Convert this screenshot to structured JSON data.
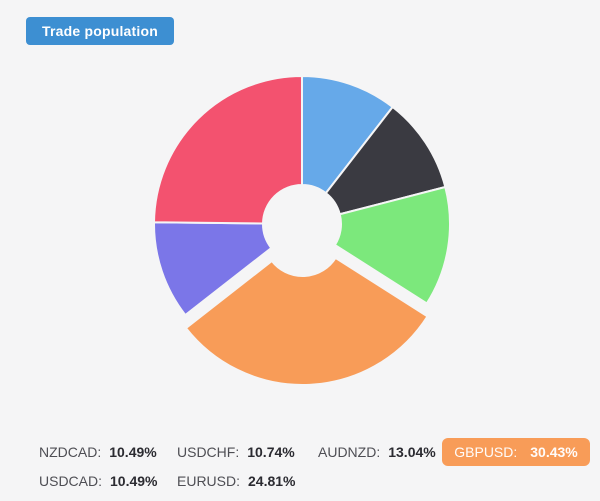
{
  "header": {
    "title": "Trade population",
    "accent_color": "#3d8fd2"
  },
  "colors": {
    "background": "#f5f5f6",
    "legend_label": "#4e4e54",
    "legend_value": "#2b2b31"
  },
  "chart_data": {
    "type": "pie",
    "title": "Trade population",
    "donut": true,
    "center": [
      302,
      224
    ],
    "outer_radius": 148,
    "inner_radius": 39,
    "start_angle_deg": 0,
    "border_color": "#f5f5f6",
    "border_width": 2,
    "legend_position": "bottom",
    "series": [
      {
        "name": "NZDCAD",
        "value": 10.49,
        "color": "#66a9e9",
        "offset": 0
      },
      {
        "name": "USDCAD",
        "value": 10.49,
        "color": "#3a3a41",
        "offset": 0
      },
      {
        "name": "AUDNZD",
        "value": 13.04,
        "color": "#7ce87c",
        "offset": 0
      },
      {
        "name": "GBPUSD",
        "value": 30.43,
        "color": "#f89c58",
        "offset": 13,
        "selected": true
      },
      {
        "name": "USDCHF",
        "value": 10.74,
        "color": "#7b76e8",
        "offset": 0
      },
      {
        "name": "EURUSD",
        "value": 24.81,
        "color": "#f3526f",
        "offset": 0
      }
    ]
  },
  "legend": {
    "highlight_color": "#f89c58",
    "rows": [
      [
        {
          "label": "NZDCAD:",
          "value": "10.49%"
        },
        {
          "label": "USDCHF:",
          "value": "10.74%"
        },
        {
          "label": "AUDNZD:",
          "value": "13.04%"
        },
        {
          "label": "GBPUSD:",
          "value": "30.43%",
          "highlighted": true
        }
      ],
      [
        {
          "label": "USDCAD:",
          "value": "10.49%"
        },
        {
          "label": "EURUSD:",
          "value": "24.81%"
        }
      ]
    ]
  }
}
